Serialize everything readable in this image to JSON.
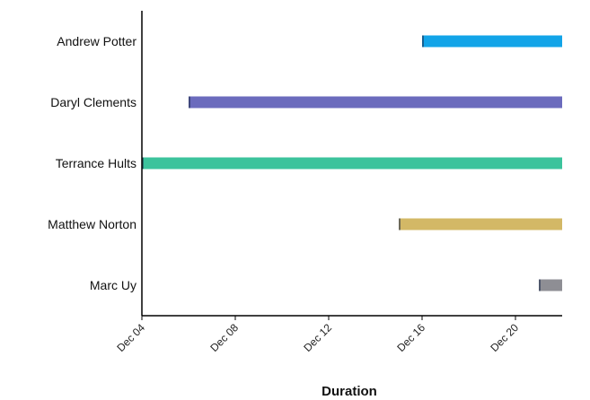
{
  "chart_data": {
    "type": "bar",
    "orientation": "horizontal",
    "subtype": "gantt",
    "xlabel": "Duration",
    "ylabel": "",
    "title": "",
    "x_range": [
      "Dec 04",
      "Dec 22"
    ],
    "x_ticks": [
      "Dec 04",
      "Dec 08",
      "Dec 12",
      "Dec 16",
      "Dec 20"
    ],
    "grid": false,
    "legend": "none",
    "series": [
      {
        "label": "Andrew Potter",
        "start": "Dec 16",
        "end": "Dec 22",
        "color": "#12a4e8"
      },
      {
        "label": "Daryl Clements",
        "start": "Dec 06",
        "end": "Dec 22",
        "color": "#6b6bbd"
      },
      {
        "label": "Terrance Hults",
        "start": "Dec 04",
        "end": "Dec 22",
        "color": "#3cc39c"
      },
      {
        "label": "Matthew Norton",
        "start": "Dec 15",
        "end": "Dec 22",
        "color": "#d3b866"
      },
      {
        "label": "Marc Uy",
        "start": "Dec 21",
        "end": "Dec 22",
        "color": "#8e8e94"
      }
    ]
  }
}
